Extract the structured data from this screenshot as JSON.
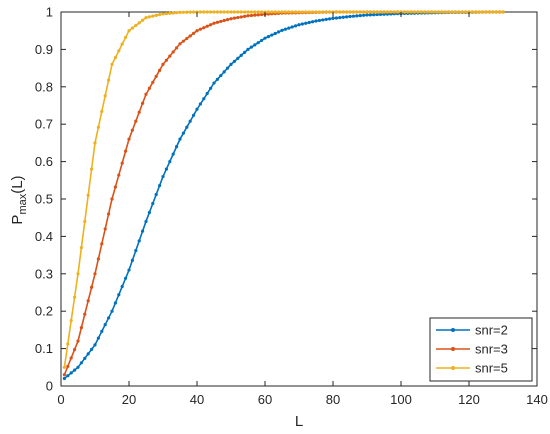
{
  "chart_data": {
    "type": "line",
    "title": "",
    "xlabel": "L",
    "ylabel_main": "P",
    "ylabel_sub": "max",
    "ylabel_suffix": "(L)",
    "xlim": [
      0,
      140
    ],
    "ylim": [
      0,
      1
    ],
    "xticks": [
      0,
      20,
      40,
      60,
      80,
      100,
      120,
      140
    ],
    "yticks": [
      0,
      0.1,
      0.2,
      0.3,
      0.4,
      0.5,
      0.6,
      0.7,
      0.8,
      0.9,
      1
    ],
    "grid": false,
    "legend_position": "bottom-right",
    "x": [
      1,
      5,
      10,
      15,
      20,
      25,
      30,
      35,
      40,
      45,
      50,
      55,
      60,
      65,
      70,
      75,
      80,
      85,
      90,
      95,
      100,
      105,
      110,
      115,
      120,
      125,
      130
    ],
    "series": [
      {
        "name": "snr=2",
        "color": "#0072BD",
        "values": [
          0.02,
          0.05,
          0.11,
          0.2,
          0.31,
          0.44,
          0.56,
          0.66,
          0.74,
          0.81,
          0.86,
          0.9,
          0.93,
          0.951,
          0.966,
          0.976,
          0.983,
          0.988,
          0.992,
          0.994,
          0.996,
          0.997,
          0.998,
          0.999,
          0.999,
          1.0,
          1.0
        ]
      },
      {
        "name": "snr=3",
        "color": "#D95319",
        "values": [
          0.03,
          0.12,
          0.3,
          0.5,
          0.66,
          0.78,
          0.86,
          0.915,
          0.95,
          0.97,
          0.982,
          0.99,
          0.994,
          0.997,
          0.998,
          0.999,
          1.0,
          1.0,
          1.0,
          1.0,
          1.0,
          1.0,
          1.0,
          1.0,
          1.0,
          1.0,
          1.0
        ]
      },
      {
        "name": "snr=5",
        "color": "#EDB120",
        "values": [
          0.05,
          0.3,
          0.65,
          0.86,
          0.95,
          0.985,
          0.995,
          0.999,
          1.0,
          1.0,
          1.0,
          1.0,
          1.0,
          1.0,
          1.0,
          1.0,
          1.0,
          1.0,
          1.0,
          1.0,
          1.0,
          1.0,
          1.0,
          1.0,
          1.0,
          1.0,
          1.0
        ]
      }
    ]
  }
}
